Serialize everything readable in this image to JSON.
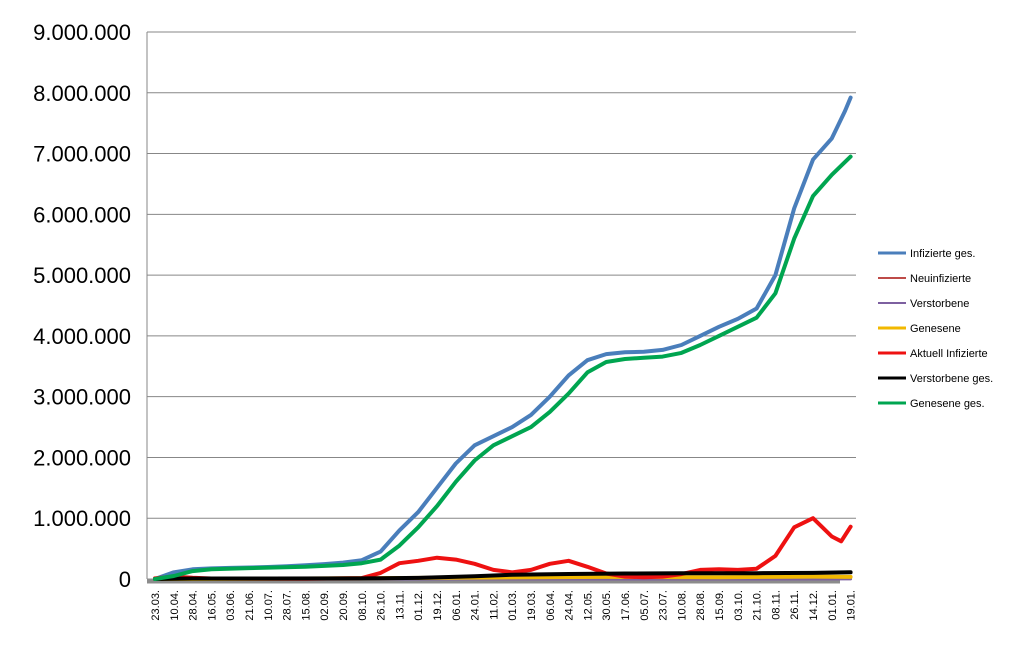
{
  "chart_data": {
    "type": "line",
    "title": "",
    "xlabel": "",
    "ylabel": "",
    "ylim": [
      0,
      9000000
    ],
    "y_ticks": [
      0,
      1000000,
      2000000,
      3000000,
      4000000,
      5000000,
      6000000,
      7000000,
      8000000,
      9000000
    ],
    "y_tick_labels": [
      "0",
      "1.000.000",
      "2.000.000",
      "3.000.000",
      "4.000.000",
      "5.000.000",
      "6.000.000",
      "7.000.000",
      "8.000.000",
      "9.000.000"
    ],
    "x_tick_labels": [
      "23.03.",
      "10.04.",
      "28.04.",
      "16.05.",
      "03.06.",
      "21.06.",
      "10.07.",
      "28.07.",
      "15.08.",
      "02.09.",
      "20.09.",
      "08.10.",
      "26.10.",
      "13.11.",
      "01.12.",
      "19.12.",
      "06.01.",
      "24.01.",
      "11.02.",
      "01.03.",
      "19.03.",
      "06.04.",
      "24.04.",
      "12.05.",
      "30.05.",
      "17.06.",
      "05.07.",
      "23.07.",
      "10.08.",
      "28.08.",
      "15.09.",
      "03.10.",
      "21.10.",
      "08.11.",
      "26.11.",
      "14.12.",
      "01.01.",
      "19.01."
    ],
    "grid": true,
    "legend_position": "right",
    "series": [
      {
        "name": "Infizierte ges.",
        "color": "#4a7ebb",
        "stroke": 3,
        "points": [
          [
            0,
            0
          ],
          [
            1,
            110000
          ],
          [
            2,
            160000
          ],
          [
            3,
            175000
          ],
          [
            4,
            182000
          ],
          [
            5,
            190000
          ],
          [
            6,
            198000
          ],
          [
            7,
            210000
          ],
          [
            8,
            225000
          ],
          [
            9,
            245000
          ],
          [
            10,
            270000
          ],
          [
            11,
            310000
          ],
          [
            12,
            450000
          ],
          [
            13,
            800000
          ],
          [
            14,
            1100000
          ],
          [
            15,
            1500000
          ],
          [
            16,
            1900000
          ],
          [
            17,
            2200000
          ],
          [
            18,
            2350000
          ],
          [
            19,
            2500000
          ],
          [
            20,
            2700000
          ],
          [
            21,
            3000000
          ],
          [
            22,
            3350000
          ],
          [
            23,
            3600000
          ],
          [
            24,
            3700000
          ],
          [
            25,
            3730000
          ],
          [
            26,
            3740000
          ],
          [
            27,
            3770000
          ],
          [
            28,
            3850000
          ],
          [
            29,
            4000000
          ],
          [
            30,
            4150000
          ],
          [
            31,
            4280000
          ],
          [
            32,
            4450000
          ],
          [
            33,
            5000000
          ],
          [
            34,
            6100000
          ],
          [
            35,
            6900000
          ],
          [
            36,
            7250000
          ],
          [
            36.7,
            7700000
          ],
          [
            37,
            7920000
          ]
        ]
      },
      {
        "name": "Neuinfizierte",
        "color": "#be4b48",
        "stroke": 2,
        "points": [
          [
            0,
            2000
          ],
          [
            2,
            5000
          ],
          [
            5,
            1000
          ],
          [
            12,
            10000
          ],
          [
            16,
            25000
          ],
          [
            22,
            20000
          ],
          [
            30,
            10000
          ],
          [
            35,
            45000
          ],
          [
            37,
            40000
          ]
        ]
      },
      {
        "name": "Verstorbene",
        "color": "#7d60a0",
        "stroke": 2,
        "points": [
          [
            0,
            0
          ],
          [
            10,
            200
          ],
          [
            20,
            800
          ],
          [
            30,
            300
          ],
          [
            37,
            1000
          ]
        ]
      },
      {
        "name": "Genesene",
        "color": "#f2b800",
        "stroke": 3,
        "points": [
          [
            0,
            0
          ],
          [
            5,
            3000
          ],
          [
            12,
            15000
          ],
          [
            18,
            25000
          ],
          [
            24,
            35000
          ],
          [
            30,
            30000
          ],
          [
            35,
            40000
          ],
          [
            37,
            35000
          ]
        ]
      },
      {
        "name": "Aktuell Infizierte",
        "color": "#ee1111",
        "stroke": 3,
        "points": [
          [
            0,
            10000
          ],
          [
            1,
            40000
          ],
          [
            2,
            20000
          ],
          [
            3,
            8000
          ],
          [
            8,
            5000
          ],
          [
            11,
            15000
          ],
          [
            12,
            100000
          ],
          [
            13,
            260000
          ],
          [
            14,
            300000
          ],
          [
            15,
            350000
          ],
          [
            16,
            320000
          ],
          [
            17,
            250000
          ],
          [
            18,
            150000
          ],
          [
            19,
            110000
          ],
          [
            20,
            150000
          ],
          [
            21,
            250000
          ],
          [
            22,
            300000
          ],
          [
            23,
            200000
          ],
          [
            24,
            90000
          ],
          [
            25,
            40000
          ],
          [
            26,
            30000
          ],
          [
            27,
            40000
          ],
          [
            28,
            80000
          ],
          [
            29,
            150000
          ],
          [
            30,
            160000
          ],
          [
            31,
            150000
          ],
          [
            32,
            170000
          ],
          [
            33,
            380000
          ],
          [
            34,
            850000
          ],
          [
            35,
            1000000
          ],
          [
            35.5,
            850000
          ],
          [
            36,
            700000
          ],
          [
            36.5,
            620000
          ],
          [
            37,
            860000
          ]
        ]
      },
      {
        "name": "Verstorbene ges.",
        "color": "#000000",
        "stroke": 3,
        "points": [
          [
            0,
            0
          ],
          [
            2,
            8000
          ],
          [
            6,
            9000
          ],
          [
            11,
            10000
          ],
          [
            14,
            18000
          ],
          [
            17,
            45000
          ],
          [
            19,
            70000
          ],
          [
            22,
            82000
          ],
          [
            25,
            90000
          ],
          [
            28,
            93000
          ],
          [
            32,
            95000
          ],
          [
            35,
            100000
          ],
          [
            37,
            110000
          ]
        ]
      },
      {
        "name": "Genesene ges.",
        "color": "#00a550",
        "stroke": 3,
        "points": [
          [
            0,
            0
          ],
          [
            1,
            50000
          ],
          [
            2,
            130000
          ],
          [
            3,
            160000
          ],
          [
            5,
            180000
          ],
          [
            8,
            200000
          ],
          [
            10,
            230000
          ],
          [
            11,
            260000
          ],
          [
            12,
            320000
          ],
          [
            13,
            550000
          ],
          [
            14,
            850000
          ],
          [
            15,
            1200000
          ],
          [
            16,
            1600000
          ],
          [
            17,
            1950000
          ],
          [
            18,
            2200000
          ],
          [
            19,
            2350000
          ],
          [
            20,
            2500000
          ],
          [
            21,
            2750000
          ],
          [
            22,
            3050000
          ],
          [
            23,
            3400000
          ],
          [
            24,
            3570000
          ],
          [
            25,
            3620000
          ],
          [
            26,
            3640000
          ],
          [
            27,
            3660000
          ],
          [
            28,
            3720000
          ],
          [
            29,
            3850000
          ],
          [
            30,
            4000000
          ],
          [
            31,
            4150000
          ],
          [
            32,
            4300000
          ],
          [
            33,
            4700000
          ],
          [
            34,
            5600000
          ],
          [
            35,
            6300000
          ],
          [
            36,
            6650000
          ],
          [
            37,
            6950000
          ]
        ]
      }
    ]
  }
}
